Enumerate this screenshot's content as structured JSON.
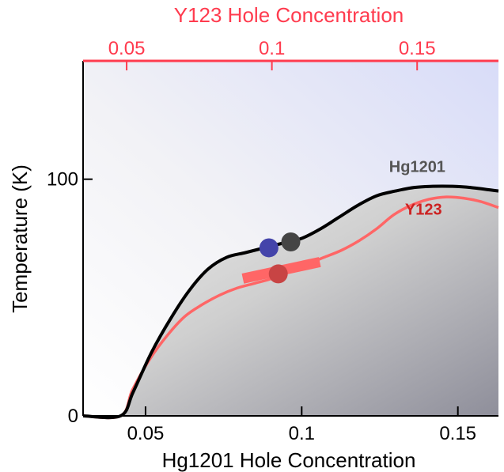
{
  "chart_data": {
    "type": "line",
    "title": "",
    "xlabel": "Hg1201 Hole Concentration",
    "ylabel": "Temperature (K)",
    "x2label": "Y123 Hole Concentration",
    "xlim": [
      0.03,
      0.163
    ],
    "ylim": [
      0,
      150
    ],
    "x2lim": [
      0.035,
      0.178
    ],
    "grid": false,
    "xticks": [
      0.05,
      0.1,
      0.15
    ],
    "xtick_labels": [
      "0.05",
      "0.1",
      "0.15"
    ],
    "yticks": [
      0,
      100
    ],
    "ytick_labels": [
      "0",
      "100"
    ],
    "x2ticks": [
      0.05,
      0.1,
      0.15
    ],
    "x2tick_labels": [
      "0.05",
      "0.1",
      "0.15"
    ],
    "colors": {
      "hg_line": "#000000",
      "y_line": "#ff6666",
      "top_axis": "#ff3b4e",
      "y_label": "#cc2222",
      "hg_label": "#555555"
    },
    "series": [
      {
        "name": "Hg1201",
        "axis": "bottom",
        "x": [
          0.03,
          0.042,
          0.046,
          0.052,
          0.058,
          0.064,
          0.07,
          0.076,
          0.082,
          0.088,
          0.094,
          0.1,
          0.106,
          0.112,
          0.118,
          0.124,
          0.13,
          0.136,
          0.142,
          0.148,
          0.154,
          0.163
        ],
        "y": [
          0,
          0,
          10,
          27,
          41,
          53,
          62,
          67,
          69,
          71,
          73,
          75,
          79,
          84,
          89,
          93,
          95,
          96.5,
          97,
          97,
          96.5,
          95
        ]
      },
      {
        "name": "Y123",
        "axis": "top",
        "x": [
          0.035,
          0.048,
          0.052,
          0.058,
          0.064,
          0.07,
          0.076,
          0.082,
          0.088,
          0.094,
          0.1,
          0.106,
          0.112,
          0.118,
          0.124,
          0.13,
          0.136,
          0.142,
          0.148,
          0.154,
          0.16,
          0.166,
          0.172,
          0.178
        ],
        "y": [
          0,
          0,
          11,
          24,
          34,
          42,
          47,
          51,
          54,
          56,
          58,
          61,
          64,
          67,
          70,
          74,
          79,
          85,
          89,
          91.5,
          92.5,
          92,
          90.5,
          88
        ]
      }
    ],
    "y123_band": {
      "axis": "top",
      "x": [
        0.09,
        0.1165
      ],
      "y": [
        58,
        65
      ]
    },
    "points": [
      {
        "name": "blue",
        "axis": "bottom",
        "x": 0.0895,
        "y": 71,
        "color": "#4444aa"
      },
      {
        "name": "dark",
        "axis": "bottom",
        "x": 0.0965,
        "y": 73.5,
        "color": "#444444"
      },
      {
        "name": "red",
        "axis": "bottom",
        "x": 0.0925,
        "y": 60,
        "color": "#c84444"
      }
    ],
    "annotations": [
      {
        "text": "Hg1201",
        "x": 0.137,
        "y": 103,
        "axis": "bottom",
        "color": "#555555"
      },
      {
        "text": "Y123",
        "x": 0.139,
        "y": 85,
        "axis": "bottom",
        "color": "#cc2222"
      }
    ]
  }
}
